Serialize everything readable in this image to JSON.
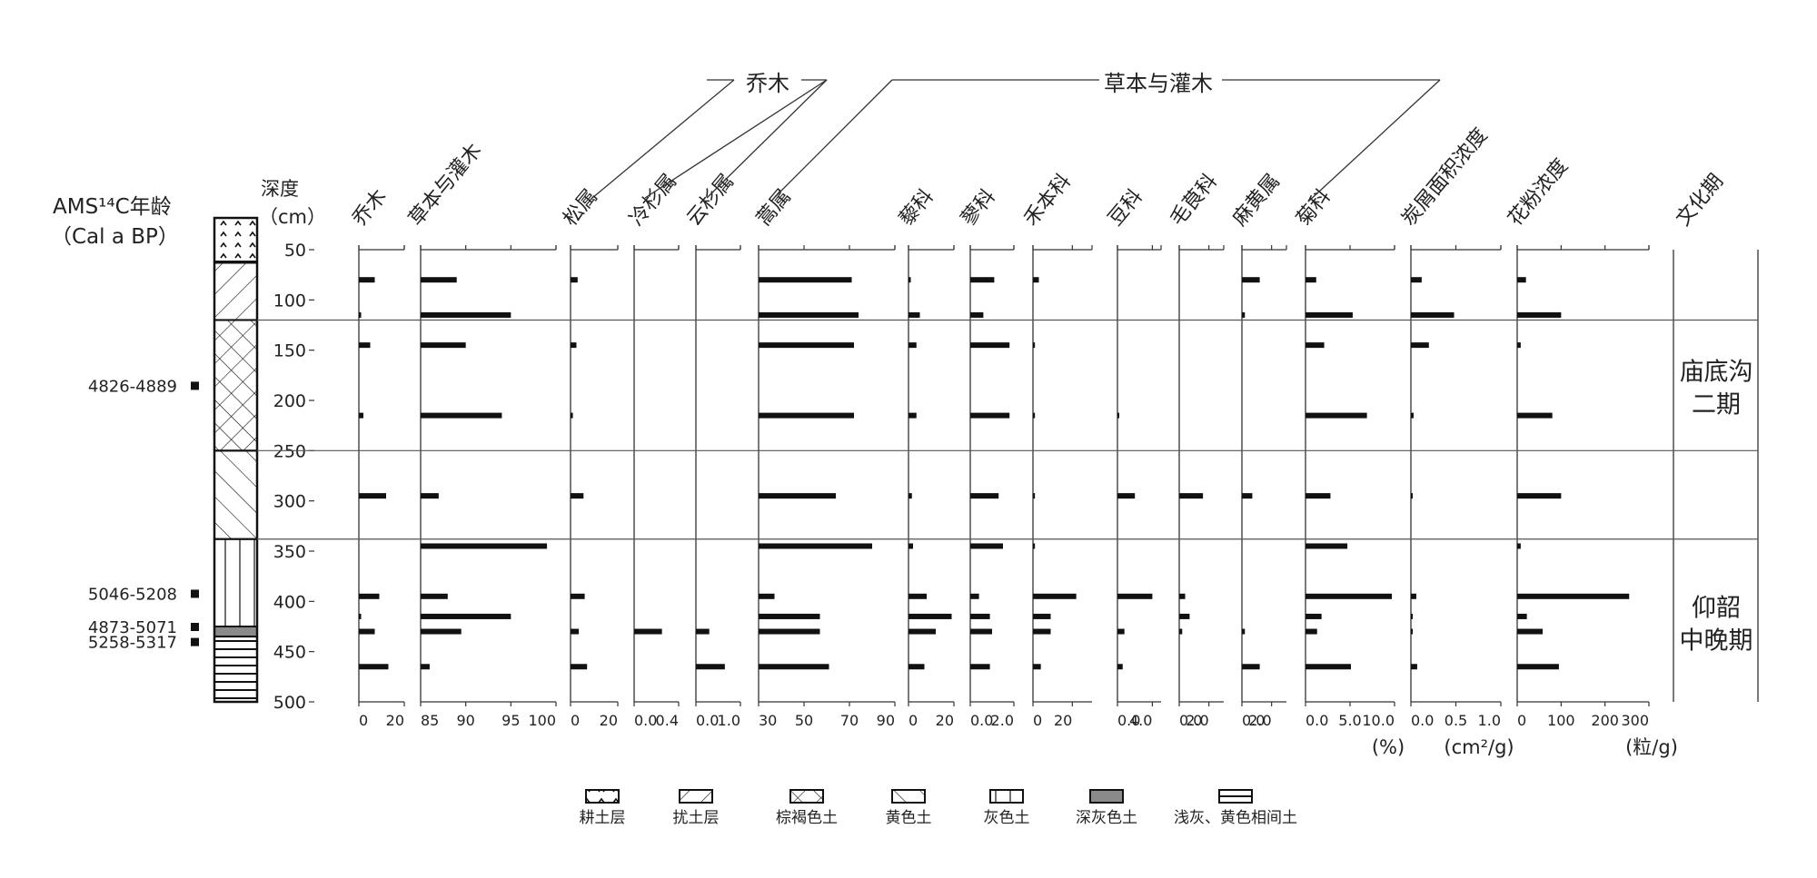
{
  "chart_data": {
    "type": "bar",
    "orientation": "horizontal",
    "group_labels": {
      "trees": "乔木",
      "herbs": "草本与灌木"
    },
    "age_title": [
      "AMS¹⁴C年龄",
      "（Cal a BP）"
    ],
    "depth_title": [
      "深度",
      "（cm）"
    ],
    "depth_ylim": [
      50,
      500
    ],
    "depth_ticks": [
      50,
      100,
      150,
      200,
      250,
      300,
      350,
      400,
      450,
      500
    ],
    "sample_depths": [
      80,
      115,
      145,
      215,
      295,
      345,
      395,
      415,
      430,
      465
    ],
    "zone_boundaries": [
      120,
      250,
      338
    ],
    "age_dates": [
      {
        "label": "4826-4889",
        "depth": 185
      },
      {
        "label": "5046-5208",
        "depth": 392
      },
      {
        "label": "4873-5071",
        "depth": 425
      },
      {
        "label": "5258-5317",
        "depth": 440
      }
    ],
    "culture_periods": [
      {
        "label": [
          "庙底沟",
          "二期"
        ],
        "depth_center": 185
      },
      {
        "label": [
          "仰韶",
          "中晚期"
        ],
        "depth_center": 420
      }
    ],
    "culture_title": "文化期",
    "lithology": [
      {
        "from": 50,
        "to": 63,
        "type": "tilled"
      },
      {
        "from": 63,
        "to": 120,
        "type": "disturbed"
      },
      {
        "from": 120,
        "to": 250,
        "type": "brown"
      },
      {
        "from": 250,
        "to": 338,
        "type": "yellow"
      },
      {
        "from": 338,
        "to": 425,
        "type": "grey"
      },
      {
        "from": 425,
        "to": 435,
        "type": "darkgrey"
      },
      {
        "from": 435,
        "to": 500,
        "type": "banded"
      }
    ],
    "series": [
      {
        "name": "乔木",
        "xlim": [
          0,
          20
        ],
        "ticks": [
          "0",
          "20"
        ],
        "values": [
          7,
          1,
          5,
          2,
          12,
          0,
          9,
          1,
          7,
          13
        ]
      },
      {
        "name": "草本与灌木",
        "xlim": [
          85,
          100
        ],
        "ticks": [
          "85",
          "90",
          "95",
          "100"
        ],
        "values": [
          89,
          95,
          90,
          94,
          87,
          99,
          88,
          95,
          89.5,
          86
        ]
      },
      {
        "name": "松属",
        "xlim": [
          0,
          20
        ],
        "ticks": [
          "0",
          "20"
        ],
        "values": [
          3,
          0,
          2.5,
          1,
          5.5,
          0,
          6,
          0,
          3.5,
          7
        ]
      },
      {
        "name": "冷杉属",
        "xlim": [
          0,
          0.4
        ],
        "ticks": [
          "0.0",
          "0.4"
        ],
        "values": [
          0,
          0,
          0,
          0,
          0,
          0,
          0,
          0,
          0.25,
          0
        ]
      },
      {
        "name": "云杉属",
        "xlim": [
          0,
          1
        ],
        "ticks": [
          "0.0",
          "1.0"
        ],
        "values": [
          0,
          0,
          0,
          0,
          0,
          0,
          0,
          0,
          0.3,
          0.65
        ]
      },
      {
        "name": "蒿属",
        "xlim": [
          30,
          90
        ],
        "ticks": [
          "30",
          "50",
          "70",
          "90"
        ],
        "values": [
          71,
          74,
          72,
          72,
          64,
          80,
          37,
          57,
          57,
          61
        ]
      },
      {
        "name": "藜科",
        "xlim": [
          0,
          20
        ],
        "ticks": [
          "0",
          "20"
        ],
        "values": [
          1,
          5,
          3.5,
          3.5,
          1.5,
          2,
          8,
          19,
          12,
          7
        ]
      },
      {
        "name": "蓼科",
        "xlim": [
          0,
          2
        ],
        "ticks": [
          "0.0",
          "2.0"
        ],
        "values": [
          1.1,
          0.6,
          1.8,
          1.8,
          1.3,
          1.5,
          0.4,
          0.9,
          1.0,
          0.9
        ]
      },
      {
        "name": "禾本科",
        "xlim": [
          0,
          30
        ],
        "ticks": [
          "0",
          "20"
        ],
        "values": [
          3,
          0,
          1,
          1,
          1,
          1,
          22,
          9,
          9,
          4
        ]
      },
      {
        "name": "豆科",
        "xlim": [
          0,
          5
        ],
        "ticks": [
          "0.0",
          "4.0"
        ],
        "values": [
          0,
          0,
          0,
          0.1,
          2,
          0,
          4,
          0,
          0.8,
          0.6
        ]
      },
      {
        "name": "毛茛科",
        "xlim": [
          0,
          3
        ],
        "ticks": [
          "0.0",
          "2.0"
        ],
        "values": [
          0,
          0,
          0,
          0,
          1.6,
          0,
          0.4,
          0.7,
          0.2,
          0
        ]
      },
      {
        "name": "麻黄属",
        "xlim": [
          0,
          3
        ],
        "ticks": [
          "0.0",
          "2.0"
        ],
        "values": [
          1.2,
          0.2,
          0,
          0,
          0.7,
          0,
          0,
          0,
          0.2,
          1.2
        ]
      },
      {
        "name": "菊科",
        "xlim": [
          0,
          10
        ],
        "ticks": [
          "0.0",
          "5.0",
          "10.0"
        ],
        "values": [
          1.2,
          5.3,
          2.1,
          6.9,
          2.8,
          4.7,
          9.7,
          1.8,
          1.3,
          5.1
        ]
      },
      {
        "name": "炭屑面积浓度",
        "xlim": [
          0,
          1
        ],
        "ticks": [
          "0.0",
          "0.5",
          "1.0"
        ],
        "values": [
          0.12,
          0.48,
          0.2,
          0.03,
          0.01,
          0,
          0.06,
          0.01,
          0.01,
          0.07
        ]
      },
      {
        "name": "花粉浓度",
        "xlim": [
          0,
          300
        ],
        "ticks": [
          "0",
          "100",
          "200",
          "300"
        ],
        "values": [
          20,
          100,
          8,
          80,
          100,
          8,
          255,
          22,
          58,
          95
        ]
      }
    ],
    "units": [
      "(%)",
      "(cm²/g)",
      "(粒/g)"
    ],
    "legend": [
      {
        "type": "tilled",
        "label": "耕土层"
      },
      {
        "type": "disturbed",
        "label": "扰土层"
      },
      {
        "type": "brown",
        "label": "棕褐色土"
      },
      {
        "type": "yellow",
        "label": "黄色土"
      },
      {
        "type": "grey",
        "label": "灰色土"
      },
      {
        "type": "darkgrey",
        "label": "深灰色土"
      },
      {
        "type": "banded",
        "label": "浅灰、黄色相间土"
      }
    ]
  }
}
